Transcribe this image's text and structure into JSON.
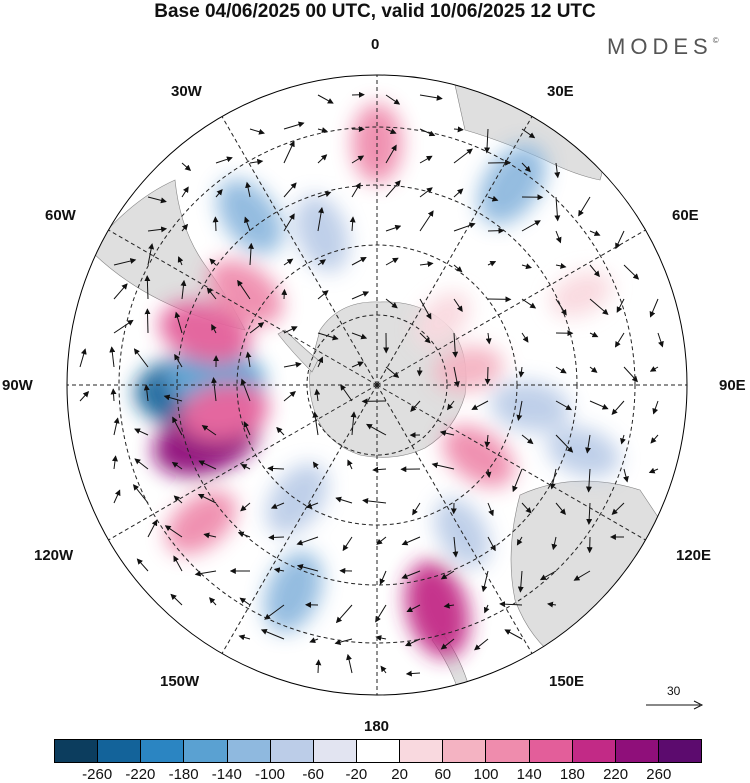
{
  "title": "Base 04/06/2025 00 UTC, valid 10/06/2025 12 UTC",
  "brand": "MODES",
  "brand_mark": "©",
  "longitude_labels": {
    "top": "0",
    "bottom": "180",
    "left": "90W",
    "right": "90E",
    "upper_left_30": "30W",
    "upper_right_30": "30E",
    "upper_left_60": "60W",
    "upper_right_60": "60E",
    "lower_left_120": "120W",
    "lower_right_120": "120E",
    "lower_left_150": "150W",
    "lower_right_150": "150E"
  },
  "reference_vector_label": "30",
  "colorbar": {
    "tick_labels": [
      "-260",
      "-220",
      "-180",
      "-140",
      "-100",
      "-60",
      "-20",
      "20",
      "60",
      "100",
      "140",
      "180",
      "220",
      "260"
    ],
    "colors": [
      "#0c3d5e",
      "#13639a",
      "#2b85c2",
      "#5aa1d2",
      "#8fb9df",
      "#bccde8",
      "#e2e4f1",
      "#ffffff",
      "#f9d9df",
      "#f4b3c2",
      "#ef8cad",
      "#e35e9a",
      "#c22a86",
      "#8f0f7a",
      "#5c0b6e"
    ]
  },
  "anomaly_cells": [
    {
      "lon": -92,
      "r": 0.59,
      "value": -260
    },
    {
      "lon": -88,
      "r": 0.52,
      "value": -180
    },
    {
      "lon": -108,
      "r": 0.58,
      "value": 220
    },
    {
      "lon": -100,
      "r": 0.5,
      "value": 140
    },
    {
      "lon": -73,
      "r": 0.58,
      "value": 160
    },
    {
      "lon": -55,
      "r": 0.52,
      "value": 120
    },
    {
      "lon": -37,
      "r": 0.68,
      "value": -120
    },
    {
      "lon": -20,
      "r": 0.52,
      "value": -100
    },
    {
      "lon": 0,
      "r": 0.78,
      "value": 100
    },
    {
      "lon": 34,
      "r": 0.78,
      "value": -140
    },
    {
      "lon": 66,
      "r": 0.72,
      "value": 40
    },
    {
      "lon": 98,
      "r": 0.5,
      "value": -100
    },
    {
      "lon": 108,
      "r": 0.7,
      "value": -80
    },
    {
      "lon": 125,
      "r": 0.4,
      "value": 100
    },
    {
      "lon": 165,
      "r": 0.75,
      "value": 180
    },
    {
      "lon": 150,
      "r": 0.55,
      "value": -80
    },
    {
      "lon": -158,
      "r": 0.72,
      "value": -120
    },
    {
      "lon": -145,
      "r": 0.45,
      "value": -100
    },
    {
      "lon": -128,
      "r": 0.72,
      "value": 100
    },
    {
      "lon": 80,
      "r": 0.3,
      "value": 60
    },
    {
      "lon": 45,
      "r": 0.3,
      "value": 40
    }
  ]
}
